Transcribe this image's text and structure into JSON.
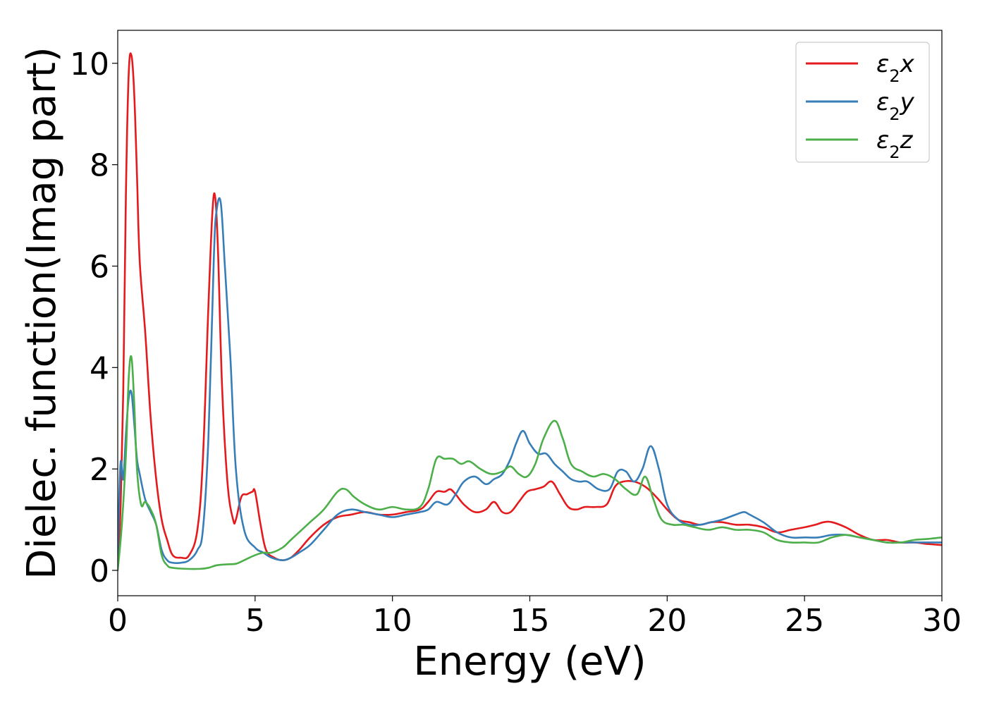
{
  "chart_data": {
    "type": "line",
    "title": "",
    "xlabel": "Energy (eV)",
    "ylabel": "Dielec. function(Imag part)",
    "xlim": [
      0,
      30
    ],
    "ylim": [
      -0.5,
      10.65
    ],
    "xticks": [
      0,
      5,
      10,
      15,
      20,
      25,
      30
    ],
    "xtick_labels": [
      "0",
      "5",
      "10",
      "15",
      "20",
      "25",
      "30"
    ],
    "yticks": [
      0,
      2,
      4,
      6,
      8,
      10
    ],
    "ytick_labels": [
      "0",
      "2",
      "4",
      "6",
      "8",
      "10"
    ],
    "grid": false,
    "legend_position": "top-right",
    "series": [
      {
        "name": "ε₂x",
        "legend_main": "ε",
        "legend_sub": "2",
        "legend_suffix": "x",
        "color": "#e41a1c",
        "x": [
          0,
          0.1,
          0.2,
          0.3,
          0.4,
          0.5,
          0.6,
          0.7,
          0.8,
          1.0,
          1.2,
          1.4,
          1.6,
          1.8,
          2.0,
          2.3,
          2.6,
          2.9,
          3.1,
          3.3,
          3.45,
          3.55,
          3.65,
          3.8,
          4.0,
          4.2,
          4.3,
          4.5,
          4.7,
          4.9,
          5.0,
          5.2,
          5.4,
          5.7,
          6.0,
          6.3,
          6.6,
          7.0,
          7.5,
          8.0,
          8.5,
          9.0,
          9.5,
          10.0,
          10.5,
          11.0,
          11.3,
          11.6,
          11.9,
          12.1,
          12.3,
          12.6,
          13.0,
          13.4,
          13.7,
          14.0,
          14.3,
          14.6,
          14.9,
          15.2,
          15.5,
          15.8,
          16.1,
          16.4,
          16.7,
          17.0,
          17.4,
          17.8,
          18.1,
          18.4,
          18.8,
          19.2,
          19.6,
          20.0,
          20.4,
          20.8,
          21.2,
          21.6,
          22.0,
          22.5,
          23.0,
          23.5,
          24.0,
          24.5,
          25.0,
          25.4,
          25.7,
          26.0,
          26.5,
          27.0,
          27.5,
          28.0,
          28.5,
          29.0,
          29.5,
          30.0
        ],
        "y": [
          0.1,
          1.2,
          3.5,
          7.5,
          9.8,
          10.15,
          9.4,
          7.8,
          6.1,
          4.7,
          3.0,
          1.8,
          1.0,
          0.6,
          0.3,
          0.25,
          0.3,
          0.8,
          2.2,
          5.2,
          7.1,
          7.35,
          6.3,
          3.6,
          1.7,
          1.0,
          1.0,
          1.45,
          1.5,
          1.55,
          1.55,
          0.9,
          0.4,
          0.25,
          0.2,
          0.25,
          0.4,
          0.65,
          0.9,
          1.05,
          1.1,
          1.15,
          1.1,
          1.1,
          1.15,
          1.2,
          1.35,
          1.55,
          1.55,
          1.6,
          1.5,
          1.3,
          1.15,
          1.2,
          1.35,
          1.15,
          1.15,
          1.35,
          1.55,
          1.6,
          1.65,
          1.75,
          1.5,
          1.25,
          1.2,
          1.25,
          1.25,
          1.3,
          1.65,
          1.75,
          1.75,
          1.65,
          1.45,
          1.2,
          1.0,
          0.95,
          0.9,
          0.95,
          0.95,
          0.9,
          0.9,
          0.85,
          0.75,
          0.8,
          0.85,
          0.9,
          0.95,
          0.95,
          0.85,
          0.7,
          0.6,
          0.6,
          0.55,
          0.55,
          0.52,
          0.5
        ]
      },
      {
        "name": "ε₂y",
        "legend_main": "ε",
        "legend_sub": "2",
        "legend_suffix": "y",
        "color": "#377eb8",
        "x": [
          0,
          0.1,
          0.2,
          0.3,
          0.4,
          0.5,
          0.6,
          0.7,
          0.8,
          1.0,
          1.2,
          1.4,
          1.6,
          1.8,
          2.0,
          2.3,
          2.6,
          2.9,
          3.1,
          3.3,
          3.5,
          3.6,
          3.75,
          3.9,
          4.1,
          4.3,
          4.6,
          5.0,
          5.3,
          5.6,
          6.0,
          6.3,
          6.6,
          7.0,
          7.5,
          8.0,
          8.5,
          9.0,
          9.5,
          10.0,
          10.5,
          11.0,
          11.3,
          11.6,
          12.0,
          12.3,
          12.6,
          13.0,
          13.4,
          13.7,
          14.0,
          14.3,
          14.5,
          14.75,
          15.0,
          15.3,
          15.6,
          15.9,
          16.2,
          16.5,
          16.8,
          17.1,
          17.5,
          17.9,
          18.2,
          18.5,
          18.8,
          19.1,
          19.4,
          19.7,
          20.0,
          20.4,
          20.8,
          21.2,
          21.6,
          22.0,
          22.5,
          22.8,
          23.0,
          23.5,
          24.0,
          24.5,
          25.0,
          25.5,
          26.0,
          26.5,
          27.0,
          27.5,
          28.0,
          28.5,
          29.0,
          29.5,
          30.0
        ],
        "y": [
          0.3,
          2.1,
          1.8,
          2.7,
          3.4,
          3.5,
          2.9,
          2.2,
          1.9,
          1.4,
          1.15,
          0.9,
          0.4,
          0.2,
          0.15,
          0.15,
          0.2,
          0.4,
          0.8,
          2.6,
          6.2,
          7.1,
          7.25,
          6.0,
          4.2,
          2.0,
          0.8,
          0.45,
          0.35,
          0.25,
          0.2,
          0.25,
          0.35,
          0.5,
          0.8,
          1.1,
          1.2,
          1.15,
          1.1,
          1.05,
          1.1,
          1.15,
          1.2,
          1.35,
          1.3,
          1.5,
          1.75,
          1.85,
          1.7,
          1.8,
          1.9,
          2.2,
          2.5,
          2.75,
          2.5,
          2.3,
          2.3,
          2.1,
          1.95,
          1.8,
          1.75,
          1.75,
          1.6,
          1.6,
          1.95,
          1.95,
          1.75,
          2.0,
          2.45,
          2.0,
          1.3,
          1.0,
          0.9,
          0.9,
          0.95,
          1.0,
          1.1,
          1.15,
          1.1,
          0.95,
          0.75,
          0.65,
          0.65,
          0.65,
          0.7,
          0.7,
          0.65,
          0.6,
          0.55,
          0.55,
          0.55,
          0.55,
          0.55
        ]
      },
      {
        "name": "ε₂z",
        "legend_main": "ε",
        "legend_sub": "2",
        "legend_suffix": "z",
        "color": "#4daf4a",
        "x": [
          0,
          0.15,
          0.3,
          0.4,
          0.5,
          0.6,
          0.7,
          0.85,
          1.0,
          1.2,
          1.4,
          1.6,
          1.8,
          2.0,
          2.5,
          3.0,
          3.3,
          3.6,
          4.0,
          4.3,
          4.6,
          5.0,
          5.3,
          5.6,
          6.0,
          6.3,
          6.6,
          7.0,
          7.5,
          8.0,
          8.3,
          8.6,
          9.0,
          9.5,
          10.0,
          10.5,
          11.0,
          11.3,
          11.6,
          11.9,
          12.2,
          12.5,
          12.8,
          13.2,
          13.6,
          14.0,
          14.3,
          14.6,
          14.9,
          15.2,
          15.5,
          15.9,
          16.2,
          16.5,
          16.9,
          17.3,
          17.7,
          18.1,
          18.5,
          18.9,
          19.2,
          19.5,
          19.8,
          20.2,
          20.6,
          21.0,
          21.5,
          22.0,
          22.5,
          23.0,
          23.5,
          24.0,
          24.5,
          25.0,
          25.5,
          26.0,
          26.5,
          27.0,
          27.5,
          28.0,
          28.5,
          29.0,
          29.5,
          30.0
        ],
        "y": [
          0.0,
          0.9,
          2.3,
          3.8,
          4.2,
          3.3,
          2.0,
          1.3,
          1.35,
          1.2,
          0.9,
          0.3,
          0.1,
          0.05,
          0.03,
          0.03,
          0.05,
          0.1,
          0.12,
          0.13,
          0.2,
          0.3,
          0.35,
          0.35,
          0.45,
          0.6,
          0.75,
          0.95,
          1.2,
          1.55,
          1.6,
          1.45,
          1.3,
          1.2,
          1.25,
          1.2,
          1.25,
          1.6,
          2.2,
          2.2,
          2.2,
          2.1,
          2.15,
          2.0,
          1.9,
          1.95,
          2.05,
          1.9,
          1.85,
          2.1,
          2.6,
          2.95,
          2.6,
          2.1,
          1.95,
          1.85,
          1.9,
          1.8,
          1.6,
          1.5,
          1.85,
          1.4,
          1.0,
          0.9,
          0.9,
          0.85,
          0.8,
          0.85,
          0.8,
          0.8,
          0.75,
          0.6,
          0.55,
          0.55,
          0.55,
          0.65,
          0.7,
          0.65,
          0.6,
          0.55,
          0.55,
          0.6,
          0.62,
          0.65
        ]
      }
    ]
  }
}
